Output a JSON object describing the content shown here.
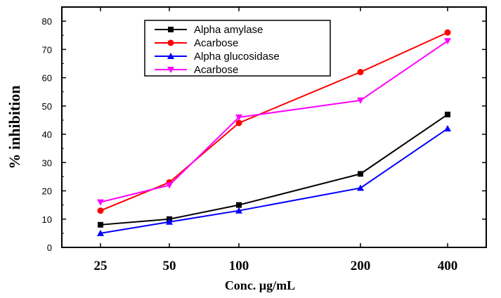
{
  "chart_data": {
    "type": "line",
    "xlabel": "Conc. µg/mL",
    "ylabel": "% inhibition",
    "categories": [
      "25",
      "50",
      "100",
      "200",
      "400"
    ],
    "ylim": [
      0,
      85
    ],
    "yticks": [
      0,
      10,
      20,
      30,
      40,
      50,
      60,
      70,
      80
    ],
    "grid": false,
    "legend_position": "top-left",
    "series": [
      {
        "name": "Alpha amylase",
        "values": [
          8,
          10,
          15,
          26,
          47
        ],
        "color": "#000000",
        "marker": "square"
      },
      {
        "name": "Acarbose",
        "values": [
          13,
          23,
          44,
          62,
          76
        ],
        "color": "#ff0000",
        "marker": "circle"
      },
      {
        "name": "Alpha glucosidase",
        "values": [
          5,
          9,
          13,
          21,
          42
        ],
        "color": "#0000ff",
        "marker": "triangle-up"
      },
      {
        "name": "Acarbose",
        "values": [
          16,
          22,
          46,
          52,
          73
        ],
        "color": "#ff00ff",
        "marker": "triangle-down"
      }
    ]
  }
}
